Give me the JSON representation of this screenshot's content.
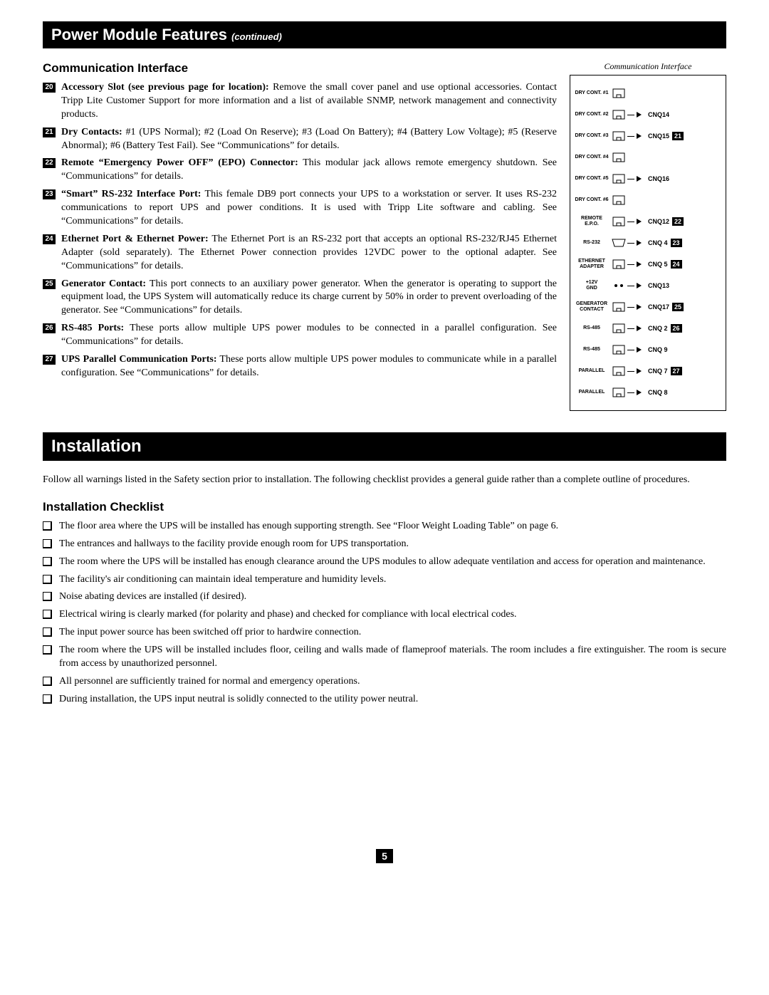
{
  "header1": {
    "title": "Power Module Features",
    "continued": "(continued)"
  },
  "section1_title": "Communication Interface",
  "diagram_caption": "Communication Interface",
  "features": [
    {
      "num": "20",
      "title": "Accessory Slot (see previous page for location):",
      "body": " Remove the small cover panel and use optional accessories. Contact Tripp Lite Customer Support for more information and a list of available SNMP, network management and connectivity products."
    },
    {
      "num": "21",
      "title": "Dry Contacts:",
      "body": " #1 (UPS Normal); #2 (Load On Reserve); #3 (Load On Battery); #4 (Battery Low Voltage); #5 (Reserve Abnormal); #6 (Battery Test Fail). See “Communications” for details."
    },
    {
      "num": "22",
      "title": "Remote “Emergency Power OFF” (EPO) Connector:",
      "body": " This modular jack allows remote emergency shutdown. See “Communications” for details."
    },
    {
      "num": "23",
      "title": "“Smart” RS-232 Interface Port:",
      "body": " This female DB9 port connects your UPS to a workstation or server. It uses RS-232 communications to report UPS and power conditions. It is used with Tripp Lite software and cabling. See “Communications” for details."
    },
    {
      "num": "24",
      "title": "Ethernet Port & Ethernet Power:",
      "body": " The Ethernet Port is an RS-232 port that accepts an optional RS-232/RJ45 Ethernet Adapter (sold separately). The Ethernet Power connection provides 12VDC power to the optional adapter. See “Communications” for details."
    },
    {
      "num": "25",
      "title": "Generator Contact:",
      "body": " This port connects to an auxiliary power generator. When the generator is operating to support the equipment load, the UPS System will automatically reduce its charge current by 50% in order to prevent overloading of the generator. See “Communications” for details."
    },
    {
      "num": "26",
      "title": "RS-485 Ports:",
      "body": " These ports allow multiple UPS power modules to be connected in a parallel configuration. See “Communications” for details."
    },
    {
      "num": "27",
      "title": "UPS Parallel Communication Ports:",
      "body": " These ports allow multiple UPS power modules to communicate while in a parallel configuration. See “Communications” for details."
    }
  ],
  "ports": [
    {
      "label": "DRY CONT. #1",
      "shape": "rj",
      "cnq": "",
      "badge": ""
    },
    {
      "label": "DRY CONT. #2",
      "shape": "rj",
      "cnq": "CNQ14",
      "badge": "",
      "bracket_top": true
    },
    {
      "label": "DRY CONT. #3",
      "shape": "rj",
      "cnq": "CNQ15",
      "badge": "21",
      "bracket_mid": true
    },
    {
      "label": "DRY CONT. #4",
      "shape": "rj",
      "cnq": "",
      "badge": ""
    },
    {
      "label": "DRY CONT. #5",
      "shape": "rj",
      "cnq": "CNQ16",
      "badge": "",
      "bracket_bot": true
    },
    {
      "label": "DRY CONT. #6",
      "shape": "rj",
      "cnq": "",
      "badge": ""
    },
    {
      "label": "REMOTE E.P.O.",
      "shape": "rj",
      "cnq": "CNQ12",
      "badge": "22"
    },
    {
      "label": "RS-232",
      "shape": "db9",
      "cnq": "CNQ 4",
      "badge": "23"
    },
    {
      "label": "ETHERNET ADAPTER",
      "shape": "rj",
      "cnq": "CNQ 5",
      "badge": "24",
      "bracket_pair_top": true
    },
    {
      "label": "+12V GND",
      "shape": "pins",
      "cnq": "CNQ13",
      "badge": "",
      "bracket_pair_bot": true
    },
    {
      "label": "GENERATOR CONTACT",
      "shape": "rj",
      "cnq": "CNQ17",
      "badge": "25"
    },
    {
      "label": "RS-485",
      "shape": "rj",
      "cnq": "CNQ 2",
      "badge": "26",
      "bracket_pair_top": true
    },
    {
      "label": "RS-485",
      "shape": "rj",
      "cnq": "CNQ 9",
      "badge": "",
      "bracket_pair_bot": true
    },
    {
      "label": "PARALLEL",
      "shape": "rj",
      "cnq": "CNQ 7",
      "badge": "27",
      "bracket_pair_top": true
    },
    {
      "label": "PARALLEL",
      "shape": "rj",
      "cnq": "CNQ 8",
      "badge": "",
      "bracket_pair_bot": true
    }
  ],
  "header2": "Installation",
  "install_intro": "Follow all warnings listed in the Safety section prior to installation. The following checklist provides a general guide rather than a complete outline of procedures.",
  "checklist_title": "Installation Checklist",
  "checklist": [
    "The floor area where the UPS will be installed has enough supporting strength. See “Floor Weight Loading Table” on page 6.",
    "The entrances and hallways to the facility provide enough room for UPS transportation.",
    "The room where the UPS will be installed has enough clearance around the UPS modules to allow adequate ventilation and access for operation and maintenance.",
    "The facility's air conditioning can maintain ideal temperature and humidity levels.",
    "Noise abating devices are installed (if desired).",
    "Electrical wiring is clearly marked (for polarity and phase) and checked for compliance with local electrical codes.",
    "The input power source has been switched off prior to hardwire connection.",
    "The room where the UPS will be installed includes floor, ceiling and walls made of flameproof materials. The room includes a fire extinguisher. The room is secure from access by unauthorized personnel.",
    "All personnel are sufficiently trained for normal and emergency operations.",
    "During installation, the UPS input neutral is solidly connected to the utility power neutral."
  ],
  "page_number": "5"
}
